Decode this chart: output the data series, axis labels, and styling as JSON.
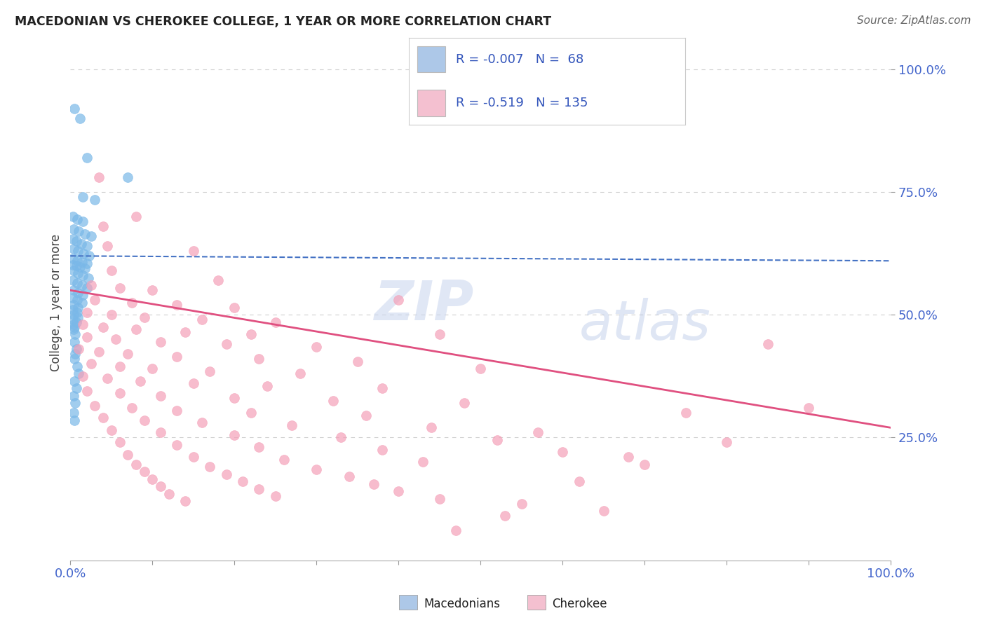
{
  "title": "MACEDONIAN VS CHEROKEE COLLEGE, 1 YEAR OR MORE CORRELATION CHART",
  "source": "Source: ZipAtlas.com",
  "ylabel": "College, 1 year or more",
  "legend_entries": [
    {
      "label": "Macedonians",
      "R": -0.007,
      "N": 68
    },
    {
      "label": "Cherokee",
      "R": -0.519,
      "N": 135
    }
  ],
  "blue_scatter": [
    [
      0.5,
      92.0
    ],
    [
      1.2,
      90.0
    ],
    [
      2.0,
      82.0
    ],
    [
      7.0,
      78.0
    ],
    [
      1.5,
      74.0
    ],
    [
      3.0,
      73.5
    ],
    [
      0.3,
      70.0
    ],
    [
      0.8,
      69.5
    ],
    [
      1.5,
      69.0
    ],
    [
      0.4,
      67.5
    ],
    [
      1.0,
      67.0
    ],
    [
      1.8,
      66.5
    ],
    [
      2.5,
      66.0
    ],
    [
      0.3,
      65.5
    ],
    [
      0.7,
      65.0
    ],
    [
      1.3,
      64.5
    ],
    [
      2.0,
      64.0
    ],
    [
      0.4,
      63.5
    ],
    [
      0.9,
      63.0
    ],
    [
      1.6,
      62.5
    ],
    [
      2.3,
      62.0
    ],
    [
      0.3,
      61.5
    ],
    [
      0.8,
      61.0
    ],
    [
      1.4,
      60.8
    ],
    [
      2.0,
      60.5
    ],
    [
      0.3,
      60.2
    ],
    [
      0.7,
      60.0
    ],
    [
      1.2,
      59.8
    ],
    [
      1.8,
      59.5
    ],
    [
      0.4,
      59.0
    ],
    [
      0.9,
      58.5
    ],
    [
      1.5,
      58.0
    ],
    [
      2.2,
      57.5
    ],
    [
      0.3,
      57.0
    ],
    [
      0.8,
      56.5
    ],
    [
      1.4,
      56.0
    ],
    [
      2.0,
      55.5
    ],
    [
      0.4,
      55.0
    ],
    [
      0.9,
      54.5
    ],
    [
      1.5,
      54.0
    ],
    [
      0.3,
      53.5
    ],
    [
      0.8,
      53.0
    ],
    [
      1.4,
      52.5
    ],
    [
      0.4,
      52.0
    ],
    [
      0.9,
      51.5
    ],
    [
      0.3,
      51.0
    ],
    [
      0.8,
      50.5
    ],
    [
      0.4,
      50.0
    ],
    [
      0.9,
      49.5
    ],
    [
      0.3,
      49.0
    ],
    [
      0.7,
      48.5
    ],
    [
      0.4,
      48.0
    ],
    [
      0.5,
      47.5
    ],
    [
      0.4,
      47.0
    ],
    [
      0.6,
      46.0
    ],
    [
      0.5,
      44.5
    ],
    [
      0.7,
      43.0
    ],
    [
      0.6,
      42.0
    ],
    [
      0.5,
      41.0
    ],
    [
      0.8,
      39.5
    ],
    [
      1.0,
      38.0
    ],
    [
      0.5,
      36.5
    ],
    [
      0.7,
      35.0
    ],
    [
      0.4,
      33.5
    ],
    [
      0.6,
      32.0
    ],
    [
      0.4,
      30.0
    ],
    [
      0.5,
      28.5
    ]
  ],
  "pink_scatter": [
    [
      3.5,
      78.0
    ],
    [
      8.0,
      70.0
    ],
    [
      4.0,
      68.0
    ],
    [
      4.5,
      64.0
    ],
    [
      15.0,
      63.0
    ],
    [
      5.0,
      59.0
    ],
    [
      18.0,
      57.0
    ],
    [
      2.5,
      56.0
    ],
    [
      6.0,
      55.5
    ],
    [
      10.0,
      55.0
    ],
    [
      3.0,
      53.0
    ],
    [
      7.5,
      52.5
    ],
    [
      13.0,
      52.0
    ],
    [
      20.0,
      51.5
    ],
    [
      2.0,
      50.5
    ],
    [
      5.0,
      50.0
    ],
    [
      9.0,
      49.5
    ],
    [
      16.0,
      49.0
    ],
    [
      25.0,
      48.5
    ],
    [
      1.5,
      48.0
    ],
    [
      4.0,
      47.5
    ],
    [
      8.0,
      47.0
    ],
    [
      14.0,
      46.5
    ],
    [
      22.0,
      46.0
    ],
    [
      2.0,
      45.5
    ],
    [
      5.5,
      45.0
    ],
    [
      11.0,
      44.5
    ],
    [
      19.0,
      44.0
    ],
    [
      30.0,
      43.5
    ],
    [
      1.0,
      43.0
    ],
    [
      3.5,
      42.5
    ],
    [
      7.0,
      42.0
    ],
    [
      13.0,
      41.5
    ],
    [
      23.0,
      41.0
    ],
    [
      35.0,
      40.5
    ],
    [
      2.5,
      40.0
    ],
    [
      6.0,
      39.5
    ],
    [
      10.0,
      39.0
    ],
    [
      17.0,
      38.5
    ],
    [
      28.0,
      38.0
    ],
    [
      1.5,
      37.5
    ],
    [
      4.5,
      37.0
    ],
    [
      8.5,
      36.5
    ],
    [
      15.0,
      36.0
    ],
    [
      24.0,
      35.5
    ],
    [
      38.0,
      35.0
    ],
    [
      2.0,
      34.5
    ],
    [
      6.0,
      34.0
    ],
    [
      11.0,
      33.5
    ],
    [
      20.0,
      33.0
    ],
    [
      32.0,
      32.5
    ],
    [
      48.0,
      32.0
    ],
    [
      3.0,
      31.5
    ],
    [
      7.5,
      31.0
    ],
    [
      13.0,
      30.5
    ],
    [
      22.0,
      30.0
    ],
    [
      36.0,
      29.5
    ],
    [
      4.0,
      29.0
    ],
    [
      9.0,
      28.5
    ],
    [
      16.0,
      28.0
    ],
    [
      27.0,
      27.5
    ],
    [
      44.0,
      27.0
    ],
    [
      5.0,
      26.5
    ],
    [
      11.0,
      26.0
    ],
    [
      20.0,
      25.5
    ],
    [
      33.0,
      25.0
    ],
    [
      52.0,
      24.5
    ],
    [
      6.0,
      24.0
    ],
    [
      13.0,
      23.5
    ],
    [
      23.0,
      23.0
    ],
    [
      38.0,
      22.5
    ],
    [
      60.0,
      22.0
    ],
    [
      7.0,
      21.5
    ],
    [
      15.0,
      21.0
    ],
    [
      26.0,
      20.5
    ],
    [
      43.0,
      20.0
    ],
    [
      8.0,
      19.5
    ],
    [
      17.0,
      19.0
    ],
    [
      30.0,
      18.5
    ],
    [
      9.0,
      18.0
    ],
    [
      19.0,
      17.5
    ],
    [
      34.0,
      17.0
    ],
    [
      10.0,
      16.5
    ],
    [
      21.0,
      16.0
    ],
    [
      37.0,
      15.5
    ],
    [
      11.0,
      15.0
    ],
    [
      23.0,
      14.5
    ],
    [
      40.0,
      14.0
    ],
    [
      12.0,
      13.5
    ],
    [
      25.0,
      13.0
    ],
    [
      45.0,
      12.5
    ],
    [
      14.0,
      12.0
    ],
    [
      55.0,
      11.5
    ],
    [
      65.0,
      10.0
    ],
    [
      85.0,
      44.0
    ],
    [
      90.0,
      31.0
    ],
    [
      80.0,
      24.0
    ],
    [
      70.0,
      19.5
    ],
    [
      75.0,
      30.0
    ],
    [
      50.0,
      39.0
    ],
    [
      45.0,
      46.0
    ],
    [
      40.0,
      53.0
    ],
    [
      57.0,
      26.0
    ],
    [
      62.0,
      16.0
    ],
    [
      68.0,
      21.0
    ],
    [
      53.0,
      9.0
    ],
    [
      47.0,
      6.0
    ]
  ],
  "blue_line": {
    "x0": 0,
    "y0": 62.0,
    "x1": 100,
    "y1": 61.0
  },
  "pink_line": {
    "x0": 0,
    "y0": 55.0,
    "x1": 100,
    "y1": 27.0
  },
  "dot_color_blue": "#7ab8e8",
  "dot_color_pink": "#f4a0b8",
  "line_color_blue": "#4472c4",
  "line_color_pink": "#e05080",
  "legend_box_blue": "#adc8e8",
  "legend_box_pink": "#f4c0d0",
  "background_color": "#ffffff",
  "grid_color": "#d0d0d0",
  "title_color": "#222222",
  "source_color": "#666666",
  "axis_tick_color": "#4466cc",
  "watermark_1": "ZIP",
  "watermark_2": "atlas",
  "watermark_color_1": "#c8d8f0",
  "watermark_color_2": "#b8ccec",
  "xlim": [
    0,
    100
  ],
  "ylim": [
    0,
    105
  ],
  "yticks": [
    25,
    50,
    75,
    100
  ]
}
